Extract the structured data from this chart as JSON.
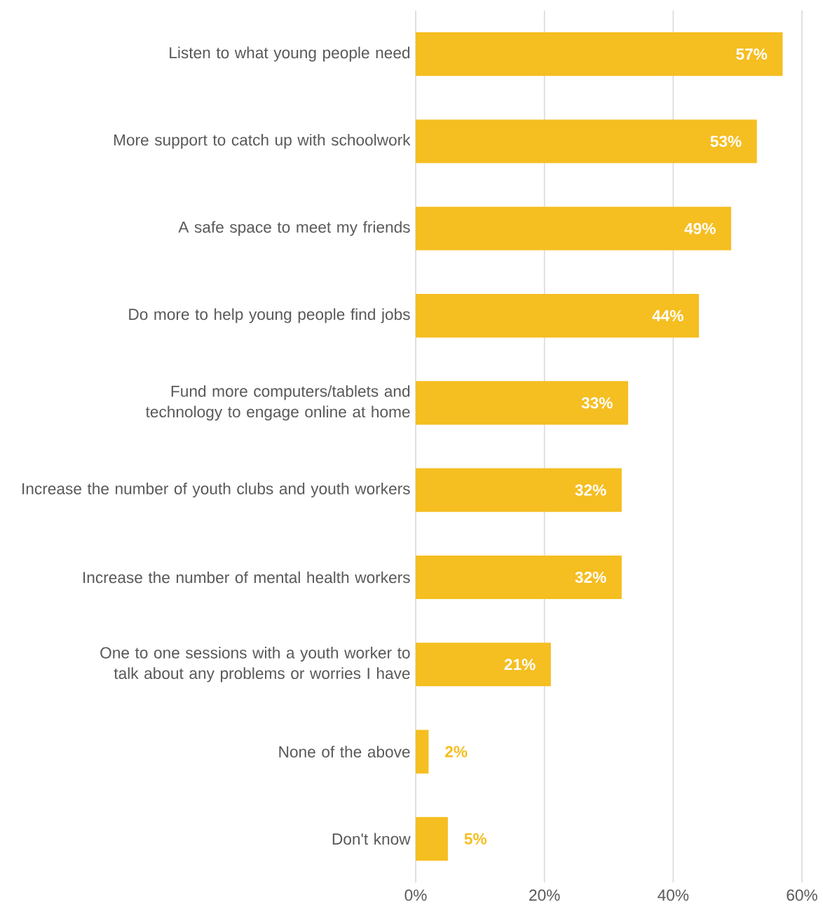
{
  "chart_data": {
    "type": "bar",
    "orientation": "horizontal",
    "categories": [
      "Listen to what young people need",
      "More support to catch up with schoolwork",
      "A safe space to meet my friends",
      "Do more to help young people find jobs",
      "Fund more computers/tablets and technology to engage online at home",
      "Increase the number of youth clubs and youth workers",
      "Increase the number of mental health workers",
      "One to one sessions with a youth worker to talk about any problems or worries I have",
      "None of the above",
      "Don't know"
    ],
    "values": [
      57,
      53,
      49,
      44,
      33,
      32,
      32,
      21,
      2,
      5
    ],
    "value_labels": [
      "57%",
      "53%",
      "49%",
      "44%",
      "33%",
      "32%",
      "32%",
      "21%",
      "2%",
      "5%"
    ],
    "color": "#f5be21",
    "xlim": [
      0,
      60
    ],
    "xticks": [
      {
        "value": 0,
        "label": "0%"
      },
      {
        "value": 20,
        "label": "20%"
      },
      {
        "value": 40,
        "label": "40%"
      },
      {
        "value": 60,
        "label": "60%"
      }
    ],
    "grid": "x"
  }
}
